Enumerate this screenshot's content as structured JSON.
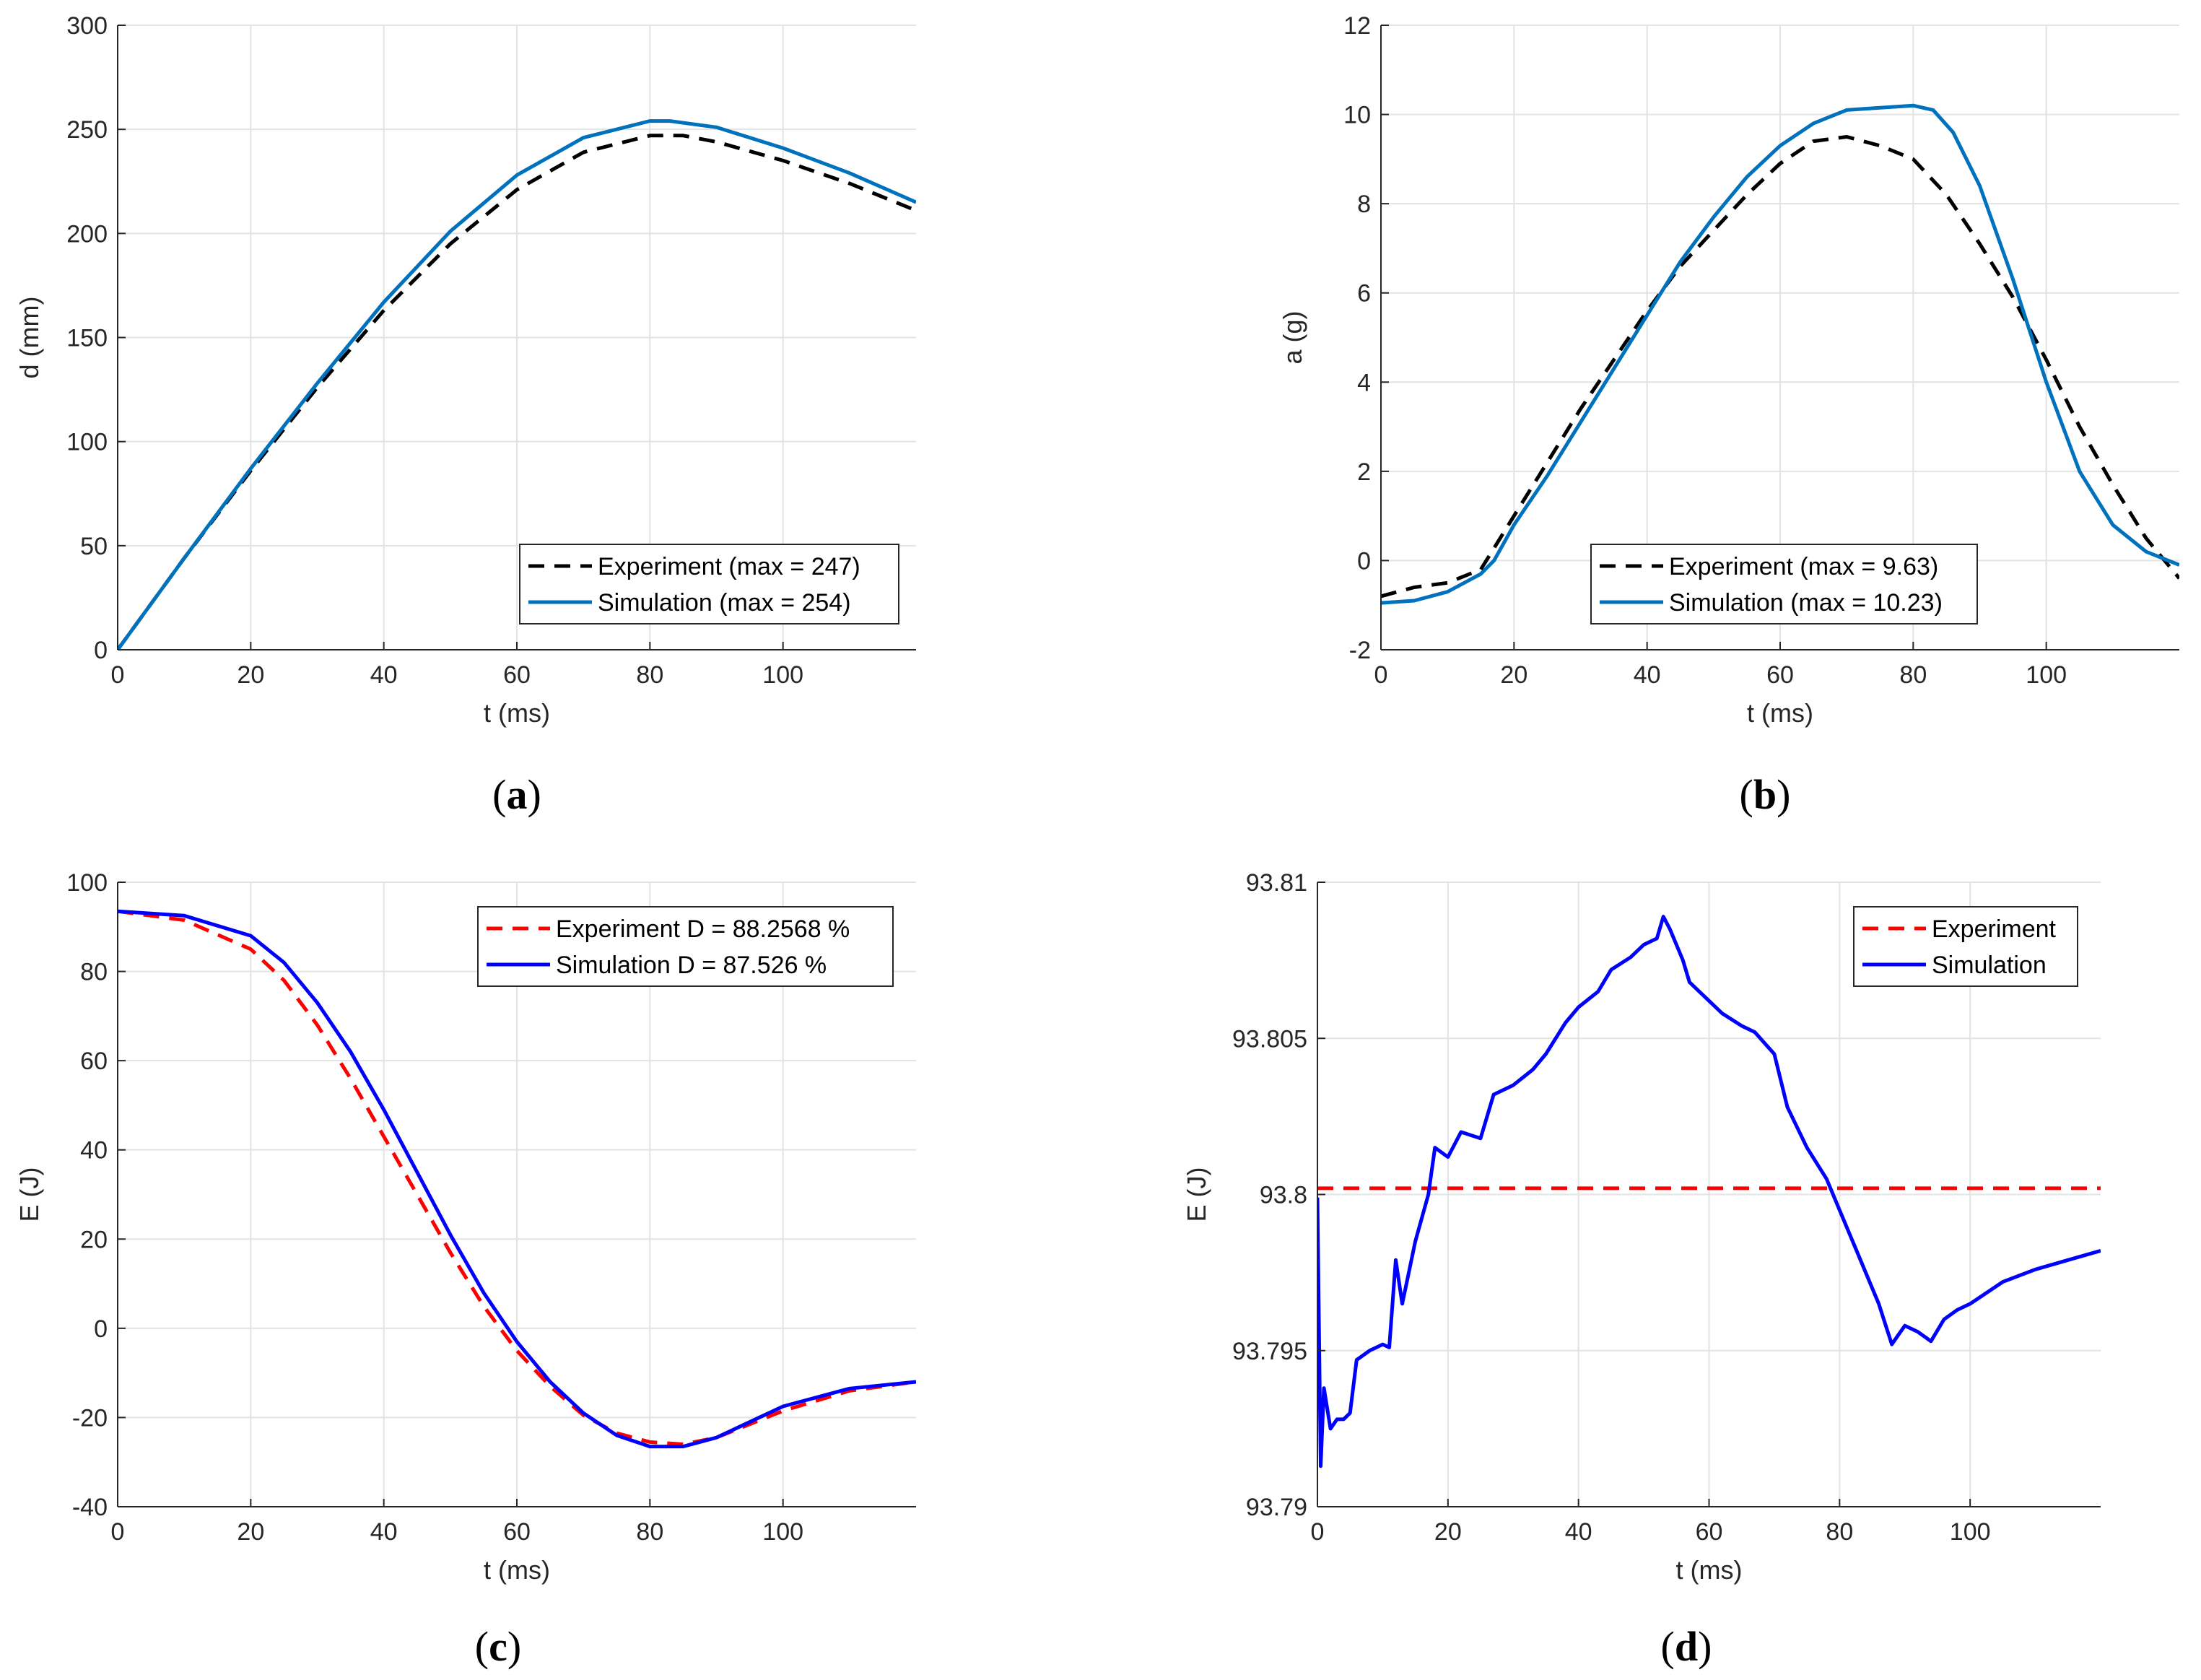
{
  "chart_data": [
    {
      "id": "a",
      "type": "line",
      "panel_label": {
        "open": "(",
        "letter": "a",
        "close": ")"
      },
      "xlabel": "t (ms)",
      "ylabel": "d (mm)",
      "xlim": [
        0,
        120
      ],
      "ylim": [
        0,
        300
      ],
      "xticks": [
        0,
        20,
        40,
        60,
        80,
        100
      ],
      "yticks": [
        0,
        50,
        100,
        150,
        200,
        250,
        300
      ],
      "grid": true,
      "legend_position": "bottom-right",
      "series": [
        {
          "name": "Experiment (max = 247)",
          "color": "#000000",
          "style": "dashed",
          "x": [
            0,
            10,
            20,
            30,
            40,
            50,
            60,
            70,
            80,
            85,
            90,
            100,
            110,
            120
          ],
          "y": [
            0,
            44,
            86,
            126,
            163,
            195,
            221,
            239,
            247,
            247,
            244,
            235,
            224,
            211
          ]
        },
        {
          "name": "Simulation (max = 254)",
          "color": "#0072BD",
          "style": "solid",
          "x": [
            0,
            10,
            20,
            30,
            40,
            50,
            60,
            70,
            80,
            83,
            90,
            100,
            110,
            120
          ],
          "y": [
            0,
            44,
            87,
            128,
            167,
            201,
            228,
            246,
            254,
            254,
            251,
            241,
            229,
            215
          ]
        }
      ]
    },
    {
      "id": "b",
      "type": "line",
      "panel_label": {
        "open": "(",
        "letter": "b",
        "close": ")"
      },
      "xlabel": "t (ms)",
      "ylabel": "a (g)",
      "xlim": [
        0,
        120
      ],
      "ylim": [
        -2,
        12
      ],
      "xticks": [
        0,
        20,
        40,
        60,
        80,
        100
      ],
      "yticks": [
        -2,
        0,
        2,
        4,
        6,
        8,
        10,
        12
      ],
      "grid": true,
      "legend_position": "bottom-right",
      "series": [
        {
          "name": "Experiment (max = 9.63)",
          "color": "#000000",
          "style": "dashed",
          "x": [
            0,
            5,
            10,
            15,
            20,
            25,
            30,
            35,
            40,
            45,
            50,
            55,
            60,
            65,
            70,
            75,
            80,
            85,
            90,
            95,
            100,
            105,
            110,
            115,
            120
          ],
          "y": [
            -0.8,
            -0.6,
            -0.5,
            -0.2,
            1.0,
            2.2,
            3.4,
            4.5,
            5.6,
            6.6,
            7.4,
            8.2,
            8.9,
            9.4,
            9.5,
            9.3,
            9.0,
            8.2,
            7.1,
            5.9,
            4.5,
            3.0,
            1.7,
            0.5,
            -0.4
          ]
        },
        {
          "name": "Simulation (max = 10.23)",
          "color": "#0072BD",
          "style": "solid",
          "x": [
            0,
            5,
            10,
            15,
            17,
            20,
            25,
            30,
            35,
            40,
            45,
            50,
            55,
            60,
            65,
            70,
            75,
            80,
            83,
            86,
            90,
            95,
            100,
            105,
            110,
            115,
            120
          ],
          "y": [
            -0.95,
            -0.9,
            -0.7,
            -0.3,
            0.0,
            0.8,
            1.9,
            3.1,
            4.3,
            5.5,
            6.7,
            7.7,
            8.6,
            9.3,
            9.8,
            10.1,
            10.15,
            10.2,
            10.1,
            9.6,
            8.4,
            6.3,
            4.0,
            2.0,
            0.8,
            0.2,
            -0.1
          ]
        }
      ]
    },
    {
      "id": "c",
      "type": "line",
      "panel_label": {
        "open": "(",
        "letter": "c",
        "close": ")"
      },
      "xlabel": "t (ms)",
      "ylabel": "E (J)",
      "xlim": [
        0,
        120
      ],
      "ylim": [
        -40,
        100
      ],
      "xticks": [
        0,
        20,
        40,
        60,
        80,
        100
      ],
      "yticks": [
        -40,
        -20,
        0,
        20,
        40,
        60,
        80,
        100
      ],
      "grid": true,
      "legend_position": "top-right",
      "series": [
        {
          "name": "Experiment D = 88.2568 %",
          "color": "#FF0000",
          "style": "dashed",
          "x": [
            0,
            10,
            20,
            25,
            30,
            35,
            40,
            45,
            50,
            55,
            60,
            65,
            70,
            75,
            80,
            85,
            90,
            100,
            110,
            120
          ],
          "y": [
            93.5,
            91.5,
            85,
            78,
            68,
            56,
            43,
            30,
            17,
            5,
            -5,
            -13,
            -19.5,
            -23.5,
            -25.5,
            -26,
            -24.5,
            -18.5,
            -14,
            -12
          ]
        },
        {
          "name": "Simulation D = 87.526 %",
          "color": "#0000FF",
          "style": "solid",
          "x": [
            0,
            10,
            20,
            25,
            30,
            35,
            40,
            45,
            50,
            55,
            60,
            65,
            70,
            75,
            80,
            85,
            90,
            100,
            110,
            120
          ],
          "y": [
            93.5,
            92.5,
            88,
            82,
            73,
            62,
            49,
            35,
            21,
            8,
            -3,
            -12,
            -19,
            -24,
            -26.5,
            -26.5,
            -24.5,
            -17.5,
            -13.5,
            -12
          ]
        }
      ]
    },
    {
      "id": "d",
      "type": "line",
      "panel_label": {
        "open": "(",
        "letter": "d",
        "close": ")"
      },
      "xlabel": "t (ms)",
      "ylabel": "E (J)",
      "xlim": [
        0,
        120
      ],
      "ylim": [
        93.79,
        93.81
      ],
      "xticks": [
        0,
        20,
        40,
        60,
        80,
        100
      ],
      "yticks": [
        93.79,
        93.795,
        93.8,
        93.805,
        93.81
      ],
      "ytick_labels": [
        "93.79",
        "93.795",
        "93.8",
        "93.805",
        "93.81"
      ],
      "grid": true,
      "legend_position": "top-right",
      "series": [
        {
          "name": "Experiment",
          "color": "#FF0000",
          "style": "dashed",
          "x": [
            0,
            120
          ],
          "y": [
            93.8002,
            93.8002
          ]
        },
        {
          "name": "Simulation",
          "color": "#0000FF",
          "style": "solid",
          "x": [
            0,
            0.5,
            1,
            2,
            3,
            4,
            5,
            6,
            8,
            10,
            11,
            12,
            13,
            14,
            15,
            17,
            18,
            20,
            22,
            25,
            27,
            30,
            33,
            35,
            38,
            40,
            43,
            45,
            48,
            50,
            52,
            53,
            54,
            56,
            57,
            60,
            62,
            65,
            67,
            70,
            72,
            75,
            78,
            80,
            83,
            86,
            88,
            89,
            90,
            92,
            94,
            96,
            98,
            100,
            105,
            110,
            115,
            120
          ],
          "y": [
            93.7999,
            93.7913,
            93.7938,
            93.7925,
            93.7928,
            93.7928,
            93.793,
            93.7947,
            93.795,
            93.7952,
            93.7951,
            93.7979,
            93.7965,
            93.7975,
            93.7985,
            93.8,
            93.8015,
            93.8012,
            93.802,
            93.8018,
            93.8032,
            93.8035,
            93.804,
            93.8045,
            93.8055,
            93.806,
            93.8065,
            93.8072,
            93.8076,
            93.808,
            93.8082,
            93.8089,
            93.8085,
            93.8075,
            93.8068,
            93.8062,
            93.8058,
            93.8054,
            93.8052,
            93.8045,
            93.8028,
            93.8015,
            93.8005,
            93.7995,
            93.798,
            93.7965,
            93.7952,
            93.7955,
            93.7958,
            93.7956,
            93.7953,
            93.796,
            93.7963,
            93.7965,
            93.7972,
            93.7976,
            93.7979,
            93.7982
          ]
        }
      ]
    }
  ]
}
